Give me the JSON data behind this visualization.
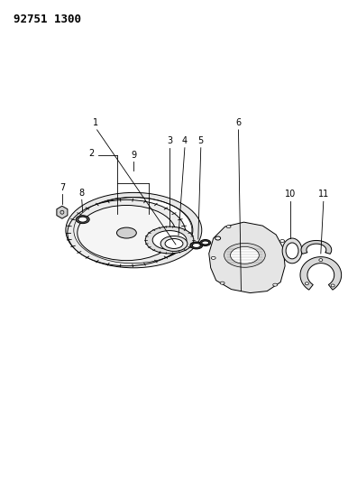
{
  "title_code": "92751 1300",
  "bg_color": "#ffffff",
  "line_color": "#000000",
  "title_fontsize": 9,
  "label_fontsize": 7,
  "figsize": [
    3.86,
    5.33
  ],
  "dpi": 100
}
